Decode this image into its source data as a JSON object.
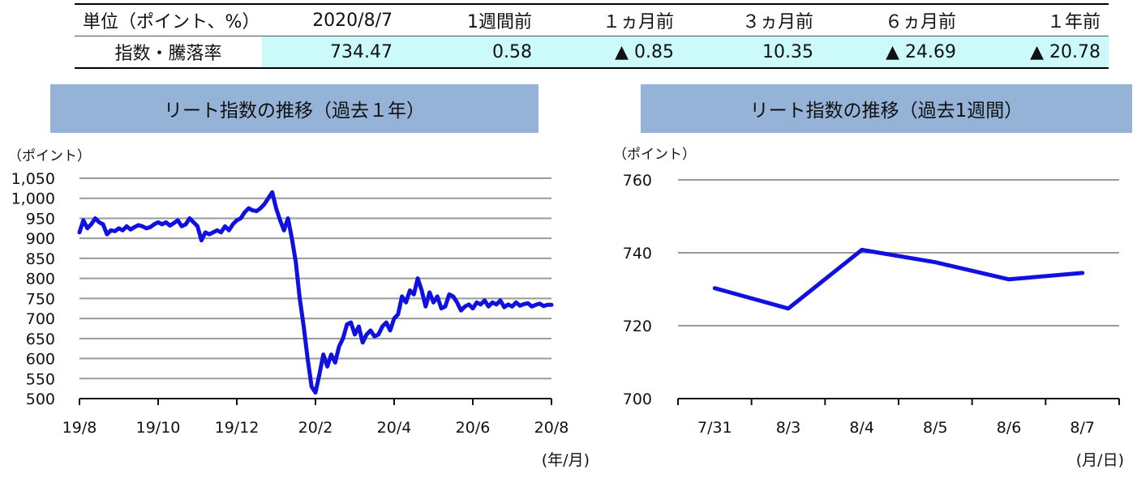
{
  "summary": {
    "headers": [
      "単位（ポイント、%）",
      "2020/8/7",
      "1週間前",
      "１ヵ月前",
      "３ヵ月前",
      "６ヵ月前",
      "１年前"
    ],
    "row_label": "指数・騰落率",
    "values": [
      "734.47",
      "0.58",
      "▲ 0.85",
      "10.35",
      "▲ 24.69",
      "▲ 20.78"
    ],
    "highlight_color": "#ccfafa"
  },
  "chart_data": [
    {
      "type": "line",
      "title": "リート指数の推移（過去１年）",
      "ylabel": "（ポイント）",
      "xlabel": "(年/月)",
      "x_tick_labels": [
        "19/8",
        "19/10",
        "19/12",
        "20/2",
        "20/4",
        "20/6",
        "20/8"
      ],
      "y_tick_labels": [
        "1,050",
        "1,000",
        "950",
        "900",
        "850",
        "800",
        "750",
        "700",
        "650",
        "600",
        "550",
        "500"
      ],
      "ylim": [
        500,
        1050
      ],
      "grid": true,
      "line_color": "#1010e0",
      "series": [
        {
          "x": [
            0,
            0.05,
            0.1,
            0.15,
            0.2,
            0.25,
            0.3,
            0.35,
            0.4,
            0.45,
            0.5,
            0.55,
            0.6,
            0.65,
            0.7,
            0.75,
            0.8,
            0.85,
            0.9,
            0.95,
            1.0,
            1.05,
            1.1,
            1.15,
            1.2,
            1.25,
            1.3,
            1.35,
            1.4,
            1.45,
            1.5,
            1.55,
            1.6,
            1.65,
            1.7,
            1.75,
            1.8,
            1.85,
            1.9,
            1.95,
            2.0,
            2.05,
            2.1,
            2.15,
            2.2,
            2.25,
            2.3,
            2.35,
            2.4,
            2.45,
            2.5,
            2.55,
            2.6,
            2.65,
            2.7,
            2.75,
            2.8,
            2.85,
            2.9,
            2.95,
            3.0,
            3.05,
            3.1,
            3.15,
            3.2,
            3.25,
            3.3,
            3.35,
            3.4,
            3.45,
            3.5,
            3.55,
            3.6,
            3.65,
            3.7,
            3.75,
            3.8,
            3.85,
            3.9,
            3.95,
            4.0,
            4.05,
            4.1,
            4.15,
            4.2,
            4.25,
            4.3,
            4.35,
            4.4,
            4.45,
            4.5,
            4.55,
            4.6,
            4.65,
            4.7,
            4.75,
            4.8,
            4.85,
            4.9,
            4.95,
            5.0,
            5.05,
            5.1,
            5.15,
            5.2,
            5.25,
            5.3,
            5.35,
            5.4,
            5.45,
            5.5,
            5.55,
            5.6,
            5.65,
            5.7,
            5.75,
            5.8,
            5.85,
            5.9,
            5.95,
            6.0
          ],
          "values": [
            915,
            945,
            925,
            935,
            950,
            940,
            935,
            910,
            920,
            918,
            925,
            920,
            930,
            922,
            928,
            933,
            930,
            925,
            928,
            935,
            940,
            935,
            940,
            932,
            938,
            945,
            930,
            935,
            950,
            940,
            930,
            895,
            915,
            910,
            915,
            920,
            915,
            930,
            920,
            935,
            945,
            950,
            965,
            975,
            970,
            968,
            975,
            985,
            1000,
            1015,
            975,
            945,
            920,
            950,
            900,
            840,
            750,
            680,
            600,
            530,
            515,
            560,
            610,
            580,
            610,
            590,
            630,
            650,
            685,
            690,
            660,
            680,
            640,
            660,
            670,
            655,
            660,
            680,
            690,
            670,
            700,
            710,
            755,
            740,
            770,
            760,
            800,
            770,
            730,
            765,
            740,
            755,
            725,
            730,
            760,
            755,
            740,
            720,
            730,
            735,
            725,
            740,
            735,
            745,
            730,
            740,
            735,
            745,
            728,
            735,
            730,
            740,
            732,
            736,
            738,
            730,
            734,
            737,
            731,
            734,
            734
          ]
        }
      ]
    },
    {
      "type": "line",
      "title": "リート指数の推移（過去1週間）",
      "ylabel": "（ポイント）",
      "xlabel": "(月/日)",
      "categories": [
        "7/31",
        "8/3",
        "8/4",
        "8/5",
        "8/6",
        "8/7"
      ],
      "y_tick_labels": [
        "760",
        "740",
        "720",
        "700"
      ],
      "ylim": [
        700,
        760
      ],
      "grid": true,
      "line_color": "#1010e0",
      "series": [
        {
          "values": [
            730.3,
            724.7,
            740.8,
            737.4,
            732.7,
            734.47
          ]
        }
      ]
    }
  ]
}
